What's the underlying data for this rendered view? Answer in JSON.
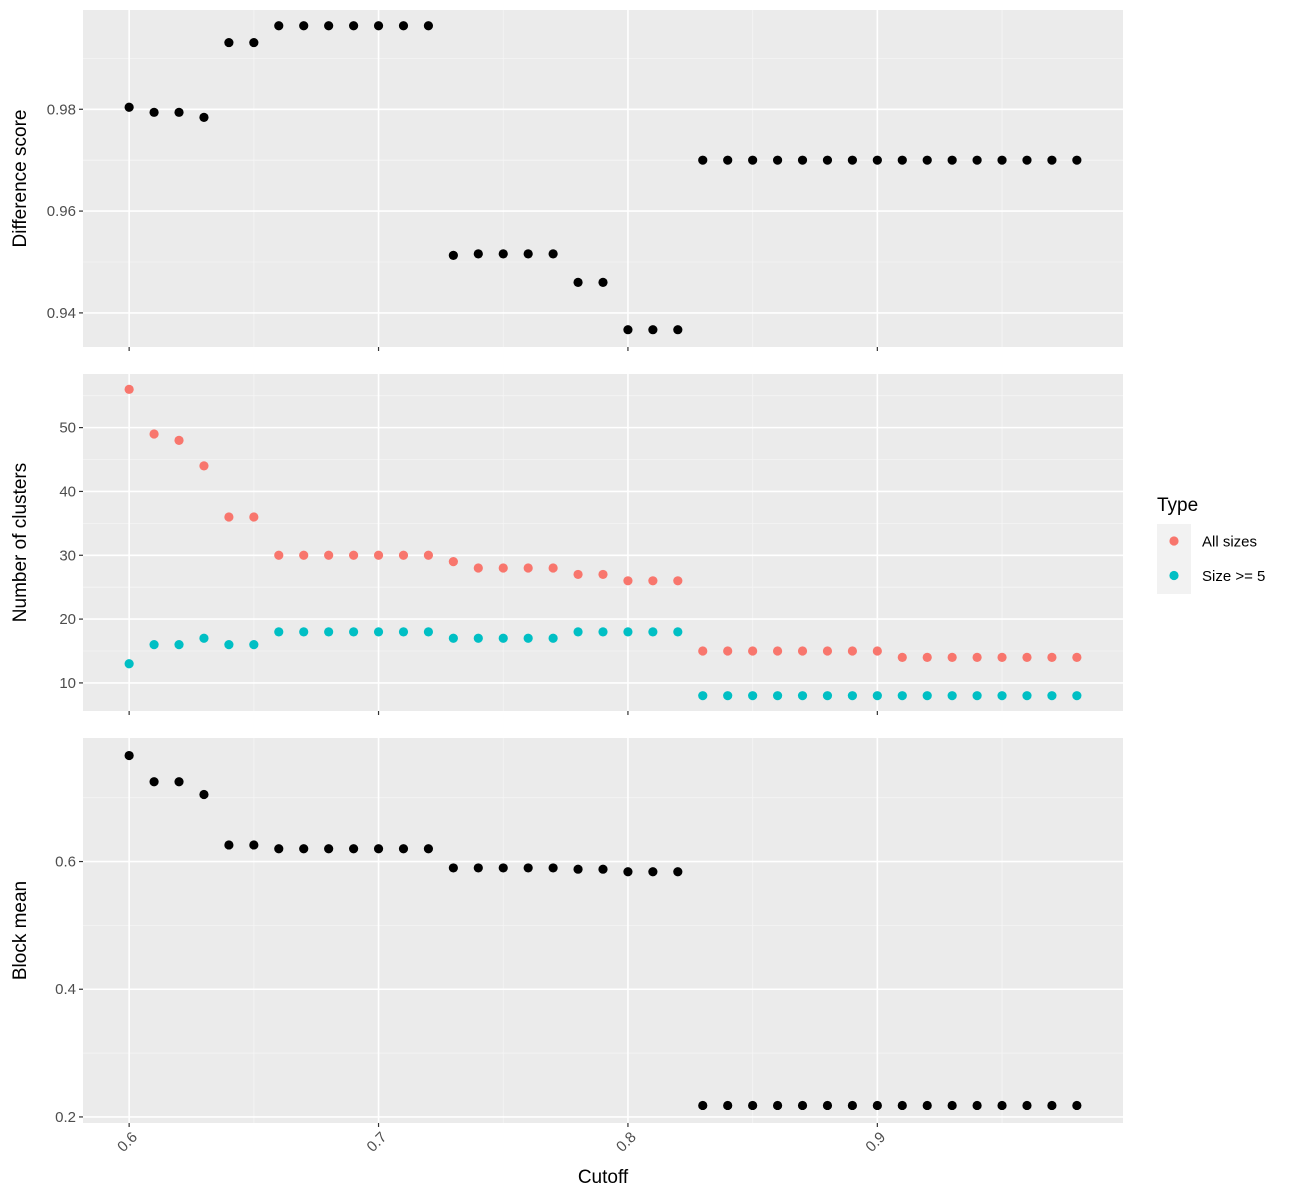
{
  "chart_data": {
    "type": "scatter",
    "xlabel": "Cutoff",
    "x": [
      0.6,
      0.61,
      0.62,
      0.63,
      0.64,
      0.65,
      0.66,
      0.67,
      0.68,
      0.69,
      0.7,
      0.71,
      0.72,
      0.73,
      0.74,
      0.75,
      0.76,
      0.77,
      0.78,
      0.79,
      0.8,
      0.81,
      0.82,
      0.83,
      0.84,
      0.85,
      0.86,
      0.87,
      0.88,
      0.89,
      0.9,
      0.91,
      0.92,
      0.93,
      0.94,
      0.95,
      0.96,
      0.97,
      0.98
    ],
    "xticks": [
      0.6,
      0.7,
      0.8,
      0.9
    ],
    "xtick_labels": [
      "0.6",
      "0.7",
      "0.8",
      "0.9"
    ],
    "xlim": [
      0.5815,
      0.9985
    ],
    "grid": true,
    "panels": [
      {
        "ylabel": "Difference score",
        "ylim": [
          0.9333,
          0.9995
        ],
        "yticks": [
          0.94,
          0.96,
          0.98
        ],
        "ytick_labels": [
          "0.94",
          "0.96",
          "0.98"
        ],
        "series": [
          {
            "color": "#000000",
            "values": [
              0.9804,
              0.9794,
              0.9794,
              0.9784,
              0.9931,
              0.9931,
              0.9964,
              0.9964,
              0.9964,
              0.9964,
              0.9964,
              0.9964,
              0.9964,
              0.9513,
              0.9516,
              0.9516,
              0.9516,
              0.9516,
              0.946,
              0.946,
              0.9367,
              0.9367,
              0.9367,
              0.97,
              0.97,
              0.97,
              0.97,
              0.97,
              0.97,
              0.97,
              0.97,
              0.97,
              0.97,
              0.97,
              0.97,
              0.97,
              0.97,
              0.97,
              0.97
            ]
          }
        ]
      },
      {
        "ylabel": "Number of clusters",
        "ylim": [
          5.6,
          58.4
        ],
        "yticks": [
          10,
          20,
          30,
          40,
          50
        ],
        "ytick_labels": [
          "10",
          "20",
          "30",
          "40",
          "50"
        ],
        "series": [
          {
            "name": "All sizes",
            "color": "#F8766D",
            "values": [
              56,
              49,
              48,
              44,
              36,
              36,
              30,
              30,
              30,
              30,
              30,
              30,
              30,
              29,
              28,
              28,
              28,
              28,
              27,
              27,
              26,
              26,
              26,
              15,
              15,
              15,
              15,
              15,
              15,
              15,
              15,
              14,
              14,
              14,
              14,
              14,
              14,
              14,
              14
            ]
          },
          {
            "name": "Size >= 5",
            "color": "#00BFC4",
            "values": [
              13,
              16,
              16,
              17,
              16,
              16,
              18,
              18,
              18,
              18,
              18,
              18,
              18,
              17,
              17,
              17,
              17,
              17,
              18,
              18,
              18,
              18,
              18,
              8,
              8,
              8,
              8,
              8,
              8,
              8,
              8,
              8,
              8,
              8,
              8,
              8,
              8,
              8,
              8
            ]
          }
        ]
      },
      {
        "ylabel": "Block mean",
        "ylim": [
          0.1905,
          0.7935
        ],
        "yticks": [
          0.2,
          0.4,
          0.6
        ],
        "ytick_labels": [
          "0.2",
          "0.4",
          "0.6"
        ],
        "series": [
          {
            "color": "#000000",
            "values": [
              0.766,
              0.725,
              0.725,
              0.705,
              0.626,
              0.626,
              0.62,
              0.62,
              0.62,
              0.62,
              0.62,
              0.62,
              0.62,
              0.59,
              0.59,
              0.59,
              0.59,
              0.59,
              0.588,
              0.588,
              0.584,
              0.584,
              0.584,
              0.218,
              0.218,
              0.218,
              0.218,
              0.218,
              0.218,
              0.218,
              0.218,
              0.218,
              0.218,
              0.218,
              0.218,
              0.218,
              0.218,
              0.218,
              0.218
            ]
          }
        ]
      }
    ],
    "legend": {
      "title": "Type",
      "placement": "right",
      "entries": [
        {
          "label": "All sizes",
          "color": "#F8766D"
        },
        {
          "label": "Size >= 5",
          "color": "#00BFC4"
        }
      ]
    }
  },
  "colors": {
    "panel_background": "#EBEBEB",
    "grid_major": "#FFFFFF",
    "grid_minor": "#F5F5F5",
    "tick_text": "#4D4D4D",
    "axis_tick": "#333333"
  }
}
